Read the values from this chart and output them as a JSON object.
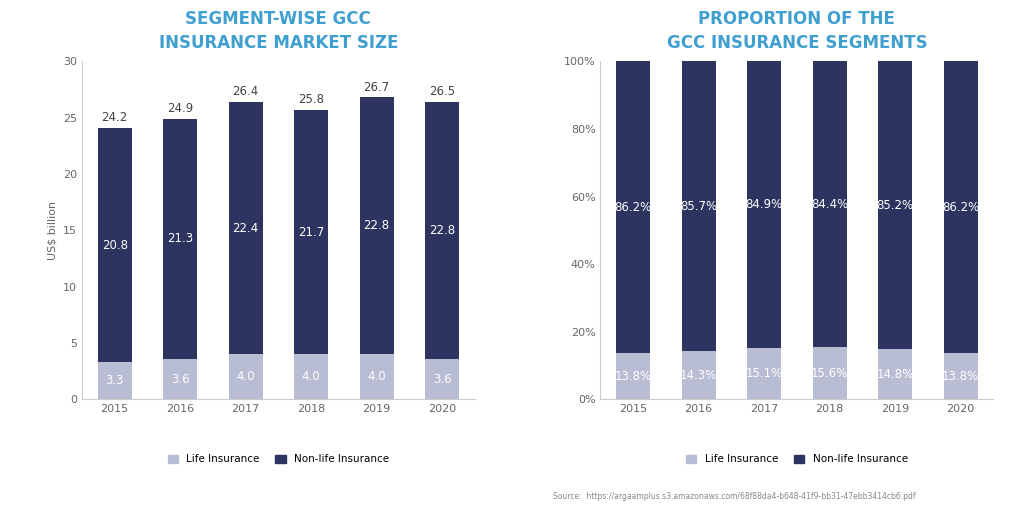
{
  "years": [
    "2015",
    "2016",
    "2017",
    "2018",
    "2019",
    "2020"
  ],
  "life_insurance": [
    3.3,
    3.6,
    4.0,
    4.0,
    4.0,
    3.6
  ],
  "nonlife_insurance": [
    20.8,
    21.3,
    22.4,
    21.7,
    22.8,
    22.8
  ],
  "totals": [
    24.2,
    24.9,
    26.4,
    25.8,
    26.7,
    26.5
  ],
  "life_pct": [
    13.8,
    14.3,
    15.1,
    15.6,
    14.8,
    13.8
  ],
  "nonlife_pct": [
    86.2,
    85.7,
    84.9,
    84.4,
    85.2,
    86.2
  ],
  "color_life": "#b8bdd4",
  "color_nonlife": "#2d3460",
  "title1": "SEGMENT-WISE GCC\nINSURANCE MARKET SIZE",
  "title2": "PROPORTION OF THE\nGCC INSURANCE SEGMENTS",
  "title_color": "#3fa0d0",
  "ylabel1": "US$ billion",
  "ylim1": [
    0,
    30
  ],
  "yticks1": [
    0,
    5,
    10,
    15,
    20,
    25,
    30
  ],
  "yticks2_labels": [
    "0%",
    "20%",
    "40%",
    "60%",
    "80%",
    "100%"
  ],
  "legend_life": "Life Insurance",
  "legend_nonlife": "Non-life Insurance",
  "source_text": "Source:  https://argaamplus.s3.amazonaws.com/68f88da4-b648-41f9-bb31-47ebb3414cb6.pdf",
  "background_color": "#ffffff",
  "bar_width": 0.52,
  "label_fontsize": 8.5,
  "title_fontsize": 12,
  "axis_fontsize": 8,
  "legend_fontsize": 7.5
}
